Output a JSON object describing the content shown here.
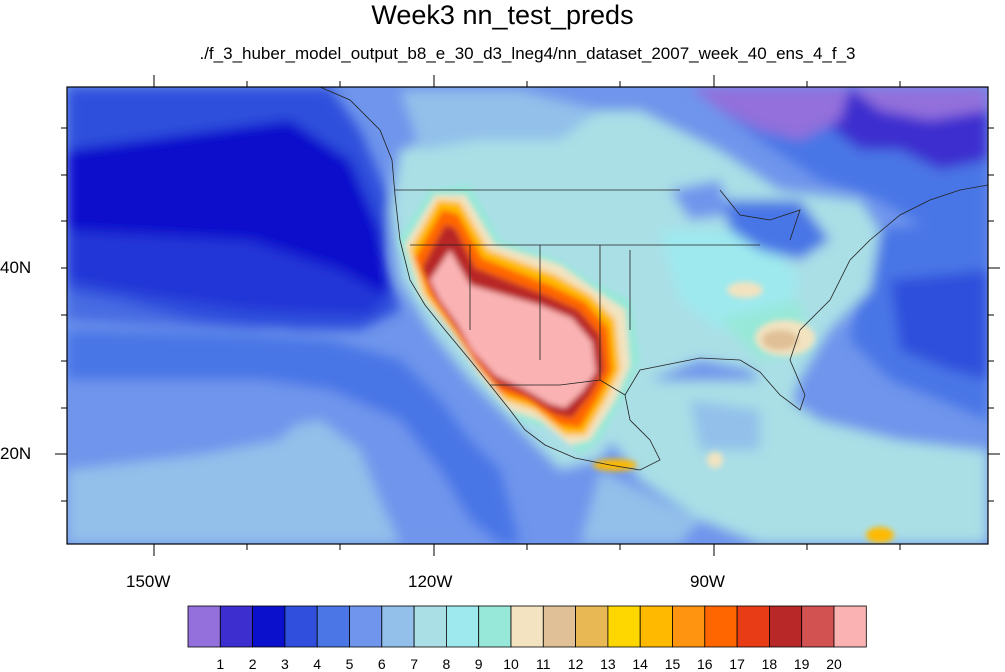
{
  "title": "Week3 nn_test_preds",
  "subtitle": "./f_3_huber_model_output_b8_e_30_d3_lneg4/nn_dataset_2007_week_40_ens_4_f_3",
  "x_tick_labels": [
    "150W",
    "120W",
    "90W"
  ],
  "y_tick_labels": [
    "40N",
    "20N"
  ],
  "colorbar": {
    "labels": [
      "1",
      "2",
      "3",
      "4",
      "5",
      "6",
      "7",
      "8",
      "9",
      "10",
      "11",
      "12",
      "13",
      "14",
      "15",
      "16",
      "17",
      "18",
      "19",
      "20"
    ],
    "colors": [
      "#9370db",
      "#3d2fcf",
      "#0a10cc",
      "#2f4fdc",
      "#4a76e6",
      "#6f95ec",
      "#92c0ea",
      "#aadfe6",
      "#9ee9ee",
      "#97e8d8",
      "#f3e3c0",
      "#e0c096",
      "#e8b855",
      "#ffd700",
      "#ffba00",
      "#ff9410",
      "#ff6600",
      "#e83c17",
      "#b82828",
      "#d25252",
      "#fab2b2"
    ]
  },
  "chart_data": {
    "type": "heatmap",
    "title": "Week3 nn_test_preds",
    "subtitle": "./f_3_huber_model_output_b8_e_30_d3_lneg4/nn_dataset_2007_week_40_ens_4_f_3",
    "region": "Western Hemisphere / North America",
    "lon_range": [
      -160,
      -62
    ],
    "lat_range": [
      11,
      59
    ],
    "x_ticks": [
      "150W",
      "120W",
      "90W"
    ],
    "y_ticks": [
      "40N",
      "20N"
    ],
    "levels": [
      1,
      2,
      3,
      4,
      5,
      6,
      7,
      8,
      9,
      10,
      11,
      12,
      13,
      14,
      15,
      16,
      17,
      18,
      19,
      20
    ],
    "highest_region": "US Southwest (values > 20)",
    "lowest_region": "North Pacific and Hudson Bay (values 1-3)"
  }
}
